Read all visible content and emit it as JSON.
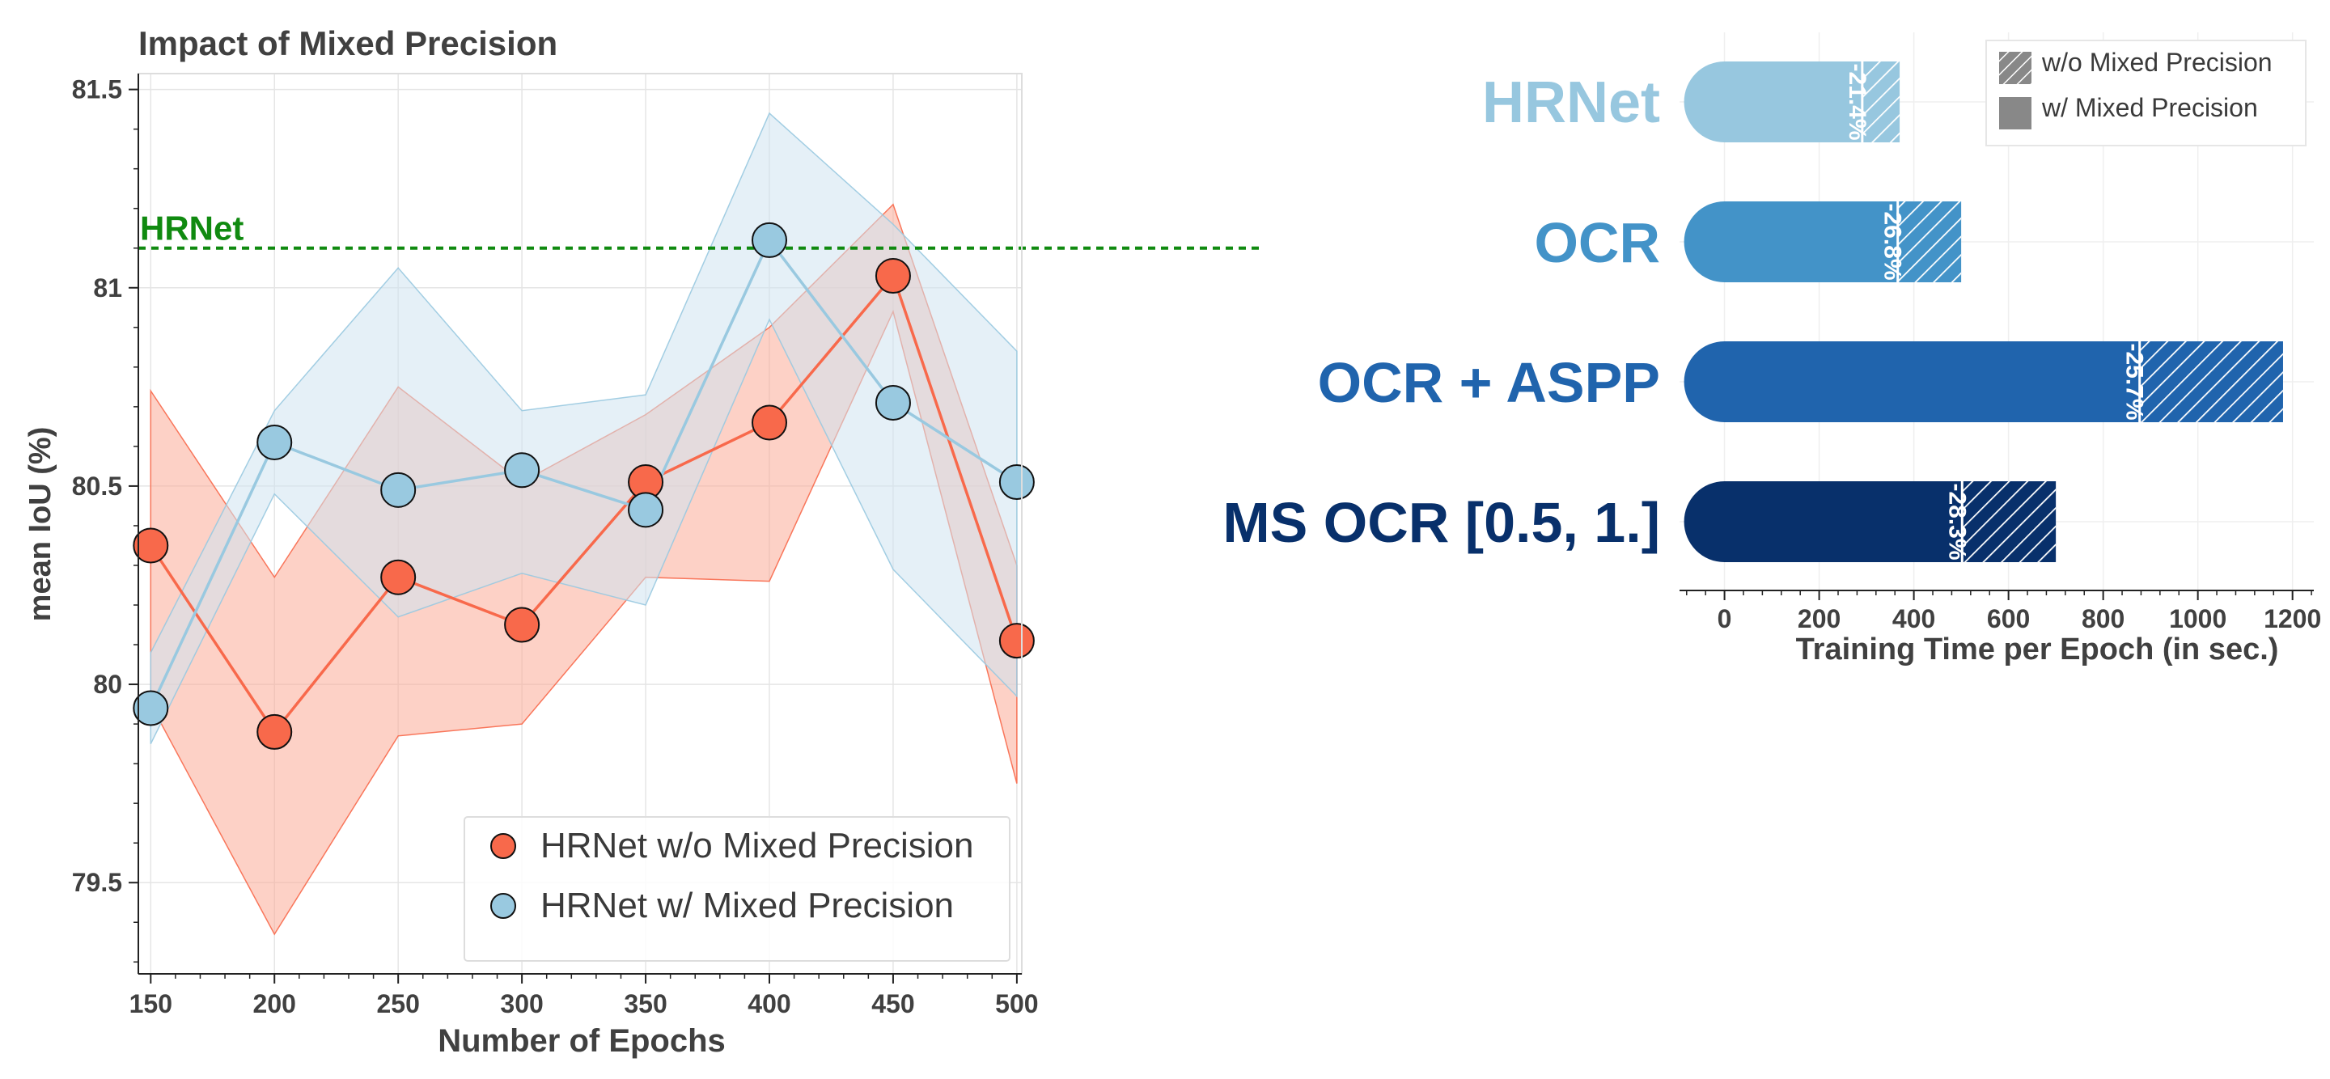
{
  "chart_data": [
    {
      "type": "line",
      "title": "Impact of Mixed Precision",
      "xlabel": "Number of Epochs",
      "ylabel": "mean IoU (%)",
      "x": [
        150,
        200,
        250,
        300,
        350,
        400,
        450,
        500
      ],
      "xticks": [
        "150",
        "200",
        "250",
        "300",
        "350",
        "400",
        "450",
        "500"
      ],
      "yticks": [
        {
          "value": 79.5,
          "label": "79.5"
        },
        {
          "value": 80,
          "label": "80"
        },
        {
          "value": 80.5,
          "label": "80.5"
        },
        {
          "value": 81,
          "label": "81"
        },
        {
          "value": 81.5,
          "label": "81.5"
        }
      ],
      "xlim": [
        145,
        502
      ],
      "ylim": [
        79.27,
        81.54
      ],
      "grid": true,
      "legend_position": "bottom-right",
      "series": [
        {
          "name": "HRNet w/o Mixed Precision",
          "color": "#f8694b",
          "band_color": "#fcab98",
          "values": [
            80.35,
            79.88,
            80.27,
            80.15,
            80.51,
            80.66,
            81.03,
            80.11
          ],
          "upper": [
            80.74,
            80.27,
            80.75,
            80.51,
            80.68,
            80.9,
            81.21,
            80.3
          ],
          "lower": [
            79.95,
            79.37,
            79.87,
            79.9,
            80.27,
            80.26,
            80.94,
            79.75
          ]
        },
        {
          "name": "HRNet w/ Mixed Precision",
          "color": "#99c9e0",
          "band_color": "#cfe4f0",
          "values": [
            79.94,
            80.61,
            80.49,
            80.54,
            80.44,
            81.12,
            80.71,
            80.51
          ],
          "upper": [
            80.08,
            80.69,
            81.05,
            80.69,
            80.73,
            81.44,
            81.16,
            80.84
          ],
          "lower": [
            79.85,
            80.48,
            80.17,
            80.28,
            80.2,
            80.92,
            80.29,
            79.97
          ]
        }
      ],
      "reference_line": {
        "label": "HRNet",
        "value": 81.1,
        "color": "#108a10"
      }
    },
    {
      "type": "bar",
      "orientation": "horizontal",
      "xlabel": "Training Time per Epoch (in sec.)",
      "xticks": [
        0,
        200,
        400,
        600,
        800,
        1000,
        1200
      ],
      "xlim": [
        -95,
        1245
      ],
      "grid": true,
      "categories": [
        "HRNet",
        "OCR",
        "OCR + ASPP",
        "MS OCR [0.5, 1.]"
      ],
      "colors": [
        "#97c7df",
        "#4393c8",
        "#2064ad",
        "#08306b"
      ],
      "series": [
        {
          "name": "w/o Mixed Precision",
          "values": [
            370,
            500,
            1180,
            700
          ]
        },
        {
          "name": "w/ Mixed Precision",
          "values": [
            291,
            366,
            877,
            502
          ]
        }
      ],
      "reduction_labels": [
        "-21.4%",
        "-26.8%",
        "-25.7%",
        "-28.3%"
      ],
      "legend_position": "top-right"
    }
  ]
}
